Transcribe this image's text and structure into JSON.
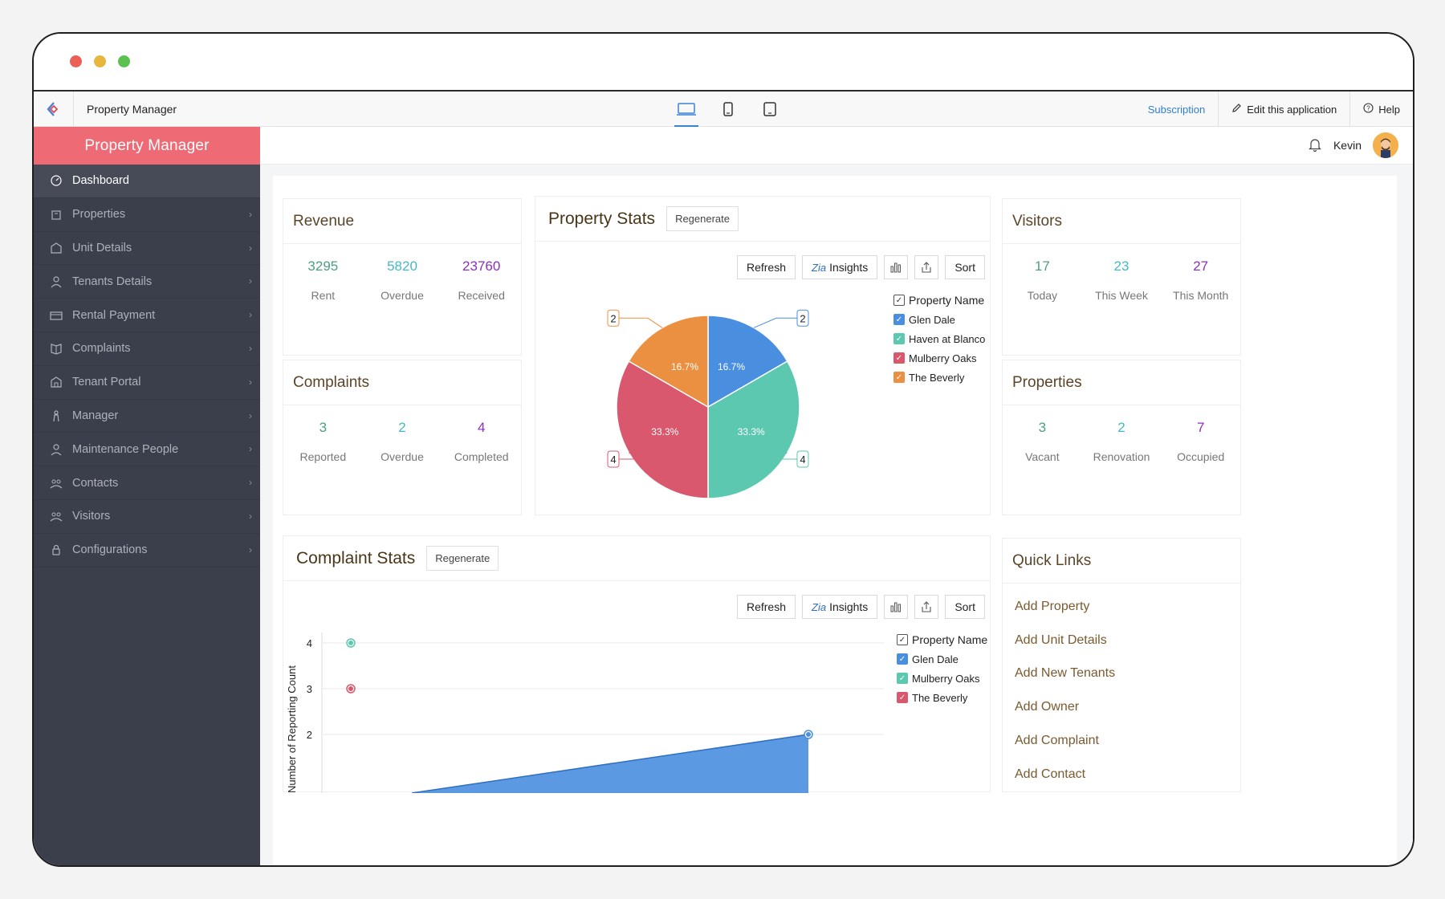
{
  "appbar": {
    "title": "Property Manager",
    "subscription": "Subscription",
    "edit_app": "Edit this application",
    "help": "Help"
  },
  "sidebar": {
    "brand": "Property Manager",
    "items": [
      {
        "label": "Dashboard",
        "icon": "dashboard-icon"
      },
      {
        "label": "Properties",
        "icon": "building-icon"
      },
      {
        "label": "Unit Details",
        "icon": "unit-icon"
      },
      {
        "label": "Tenants Details",
        "icon": "user-icon"
      },
      {
        "label": "Rental Payment",
        "icon": "payment-icon"
      },
      {
        "label": "Complaints",
        "icon": "book-icon"
      },
      {
        "label": "Tenant Portal",
        "icon": "portal-icon"
      },
      {
        "label": "Manager",
        "icon": "manager-icon"
      },
      {
        "label": "Maintenance People",
        "icon": "person-icon"
      },
      {
        "label": "Contacts",
        "icon": "contacts-icon"
      },
      {
        "label": "Visitors",
        "icon": "visitors-icon"
      },
      {
        "label": "Configurations",
        "icon": "lock-icon"
      }
    ]
  },
  "topbar": {
    "user": "Kevin"
  },
  "revenue": {
    "title": "Revenue",
    "stats": [
      {
        "value": "3295",
        "label": "Rent"
      },
      {
        "value": "5820",
        "label": "Overdue"
      },
      {
        "value": "23760",
        "label": "Received"
      }
    ]
  },
  "complaints": {
    "title": "Complaints",
    "stats": [
      {
        "value": "3",
        "label": "Reported"
      },
      {
        "value": "2",
        "label": "Overdue"
      },
      {
        "value": "4",
        "label": "Completed"
      }
    ]
  },
  "visitors": {
    "title": "Visitors",
    "stats": [
      {
        "value": "17",
        "label": "Today"
      },
      {
        "value": "23",
        "label": "This Week"
      },
      {
        "value": "27",
        "label": "This Month"
      }
    ]
  },
  "properties": {
    "title": "Properties",
    "stats": [
      {
        "value": "3",
        "label": "Vacant"
      },
      {
        "value": "2",
        "label": "Renovation"
      },
      {
        "value": "7",
        "label": "Occupied"
      }
    ]
  },
  "toolbar": {
    "refresh": "Refresh",
    "insights": "Insights",
    "sort": "Sort",
    "regenerate": "Regenerate"
  },
  "property_stats": {
    "title": "Property Stats",
    "legend_title": "Property Name"
  },
  "complaint_stats": {
    "title": "Complaint Stats",
    "legend_title": "Property Name"
  },
  "quick_links": {
    "title": "Quick Links",
    "items": [
      "Add Property",
      "Add Unit Details",
      "Add New Tenants",
      "Add Owner",
      "Add Complaint",
      "Add Contact"
    ]
  },
  "colors": {
    "blue": "#4a8ee0",
    "teal": "#5cc8b0",
    "red": "#d9586e",
    "orange": "#eb9040"
  },
  "chart_data": [
    {
      "type": "pie",
      "categories": [
        "Glen Dale",
        "Haven at Blanco",
        "Mulberry Oaks",
        "The Beverly"
      ],
      "values": [
        2,
        4,
        4,
        2
      ],
      "percent_labels": [
        "16.7%",
        "33.3%",
        "33.3%",
        "16.7%"
      ],
      "legend": "right"
    },
    {
      "type": "area",
      "ylabel": "Number of Reporting Count",
      "yticks": [
        "2",
        "3",
        "4"
      ],
      "series": [
        {
          "name": "Glen Dale",
          "points_visible": [
            2
          ]
        },
        {
          "name": "Mulberry Oaks",
          "points_visible": [
            4
          ]
        },
        {
          "name": "The Beverly",
          "points_visible": [
            3
          ]
        }
      ],
      "legend": "right"
    }
  ]
}
